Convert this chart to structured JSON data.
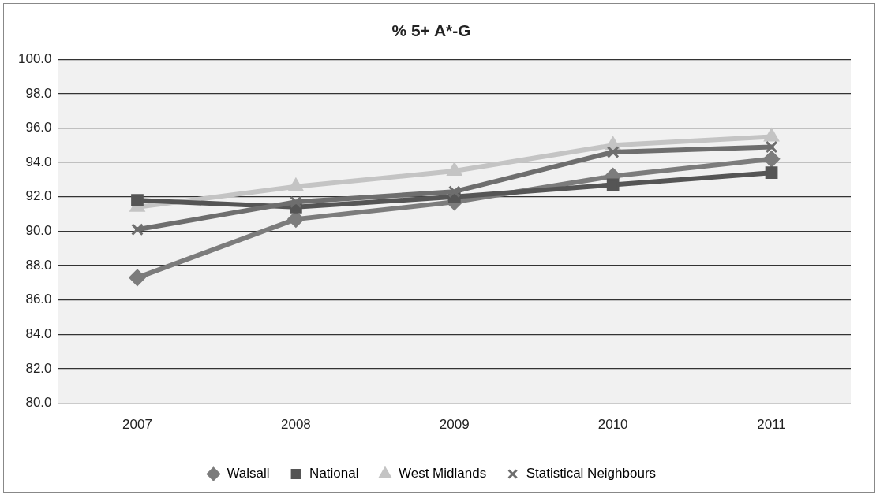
{
  "chart_data": {
    "type": "line",
    "title": "% 5+ A*-G",
    "categories": [
      "2007",
      "2008",
      "2009",
      "2010",
      "2011"
    ],
    "series": [
      {
        "name": "Walsall",
        "color": "#7c7c7c",
        "marker": "diamond",
        "values": [
          87.3,
          90.7,
          91.7,
          93.2,
          94.2
        ]
      },
      {
        "name": "National",
        "color": "#555555",
        "marker": "square",
        "values": [
          91.8,
          91.4,
          92.0,
          92.7,
          93.4
        ]
      },
      {
        "name": "West Midlands",
        "color": "#c4c4c4",
        "marker": "triangle",
        "values": [
          91.4,
          92.6,
          93.5,
          95.0,
          95.5
        ]
      },
      {
        "name": "Statistical Neighbours",
        "color": "#6e6e6e",
        "marker": "cross",
        "values": [
          90.1,
          91.7,
          92.3,
          94.6,
          94.9
        ]
      }
    ],
    "ylim": [
      80,
      100
    ],
    "yticks": [
      {
        "value": 80,
        "label": "80.0"
      },
      {
        "value": 82,
        "label": "82.0"
      },
      {
        "value": 84,
        "label": "84.0"
      },
      {
        "value": 86,
        "label": "86.0"
      },
      {
        "value": 88,
        "label": "88.0"
      },
      {
        "value": 90,
        "label": "90.0"
      },
      {
        "value": 92,
        "label": "92.0"
      },
      {
        "value": 94,
        "label": "94.0"
      },
      {
        "value": 96,
        "label": "96.0"
      },
      {
        "value": 98,
        "label": "98.0"
      },
      {
        "value": 100,
        "label": "100.0"
      }
    ],
    "grid": "y",
    "legend": "bottom",
    "line_style": "solid"
  }
}
